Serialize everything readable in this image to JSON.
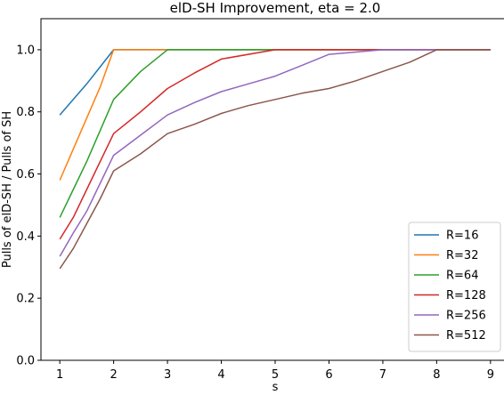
{
  "chart_data": {
    "type": "line",
    "title": "elD-SH Improvement, eta = 2.0",
    "xlabel": "s",
    "ylabel": "Pulls of elD-SH / Pulls of SH",
    "xlim": [
      0.65,
      9.35
    ],
    "ylim": [
      0.0,
      1.1
    ],
    "xticks": [
      "1",
      "2",
      "3",
      "4",
      "5",
      "6",
      "7",
      "8",
      "9"
    ],
    "yticks": [
      "0.0",
      "0.2",
      "0.4",
      "0.6",
      "0.8",
      "1.0"
    ],
    "grid": false,
    "legend_position": "lower-right",
    "series": [
      {
        "name": "R=16",
        "color": "#1f77b4",
        "points": [
          [
            1,
            0.79
          ],
          [
            1.25,
            0.84
          ],
          [
            1.5,
            0.89
          ],
          [
            1.75,
            0.945
          ],
          [
            2,
            1.0
          ],
          [
            3,
            1.0
          ],
          [
            4,
            1.0
          ],
          [
            5,
            1.0
          ],
          [
            6,
            1.0
          ],
          [
            7,
            1.0
          ],
          [
            8,
            1.0
          ],
          [
            9,
            1.0
          ]
        ]
      },
      {
        "name": "R=32",
        "color": "#ff7f0e",
        "points": [
          [
            1,
            0.58
          ],
          [
            1.25,
            0.68
          ],
          [
            1.5,
            0.78
          ],
          [
            1.75,
            0.88
          ],
          [
            2,
            1.0
          ],
          [
            3,
            1.0
          ],
          [
            4,
            1.0
          ],
          [
            5,
            1.0
          ],
          [
            6,
            1.0
          ],
          [
            7,
            1.0
          ],
          [
            8,
            1.0
          ],
          [
            9,
            1.0
          ]
        ]
      },
      {
        "name": "R=64",
        "color": "#2ca02c",
        "points": [
          [
            1,
            0.46
          ],
          [
            1.25,
            0.55
          ],
          [
            1.5,
            0.64
          ],
          [
            1.75,
            0.74
          ],
          [
            2,
            0.84
          ],
          [
            2.5,
            0.93
          ],
          [
            3,
            1.0
          ],
          [
            4,
            1.0
          ],
          [
            5,
            1.0
          ],
          [
            6,
            1.0
          ],
          [
            7,
            1.0
          ],
          [
            8,
            1.0
          ],
          [
            9,
            1.0
          ]
        ]
      },
      {
        "name": "R=128",
        "color": "#d62728",
        "points": [
          [
            1,
            0.39
          ],
          [
            1.25,
            0.46
          ],
          [
            1.5,
            0.55
          ],
          [
            1.75,
            0.64
          ],
          [
            2,
            0.73
          ],
          [
            2.5,
            0.8
          ],
          [
            3,
            0.875
          ],
          [
            3.5,
            0.925
          ],
          [
            4,
            0.97
          ],
          [
            5,
            1.0
          ],
          [
            6,
            1.0
          ],
          [
            7,
            1.0
          ],
          [
            8,
            1.0
          ],
          [
            9,
            1.0
          ]
        ]
      },
      {
        "name": "R=256",
        "color": "#9467bd",
        "points": [
          [
            1,
            0.335
          ],
          [
            1.25,
            0.41
          ],
          [
            1.5,
            0.48
          ],
          [
            1.75,
            0.57
          ],
          [
            2,
            0.66
          ],
          [
            2.5,
            0.725
          ],
          [
            3,
            0.79
          ],
          [
            3.5,
            0.83
          ],
          [
            4,
            0.865
          ],
          [
            4.5,
            0.89
          ],
          [
            5,
            0.915
          ],
          [
            5.5,
            0.95
          ],
          [
            6,
            0.985
          ],
          [
            7,
            1.0
          ],
          [
            8,
            1.0
          ],
          [
            9,
            1.0
          ]
        ]
      },
      {
        "name": "R=512",
        "color": "#8c564b",
        "points": [
          [
            1,
            0.295
          ],
          [
            1.25,
            0.36
          ],
          [
            1.5,
            0.44
          ],
          [
            1.75,
            0.52
          ],
          [
            2,
            0.61
          ],
          [
            2.5,
            0.665
          ],
          [
            3,
            0.73
          ],
          [
            3.5,
            0.76
          ],
          [
            4,
            0.795
          ],
          [
            4.5,
            0.82
          ],
          [
            5,
            0.84
          ],
          [
            5.5,
            0.86
          ],
          [
            6,
            0.875
          ],
          [
            6.5,
            0.9
          ],
          [
            7,
            0.93
          ],
          [
            7.5,
            0.96
          ],
          [
            8,
            1.0
          ],
          [
            9,
            1.0
          ]
        ]
      }
    ]
  }
}
